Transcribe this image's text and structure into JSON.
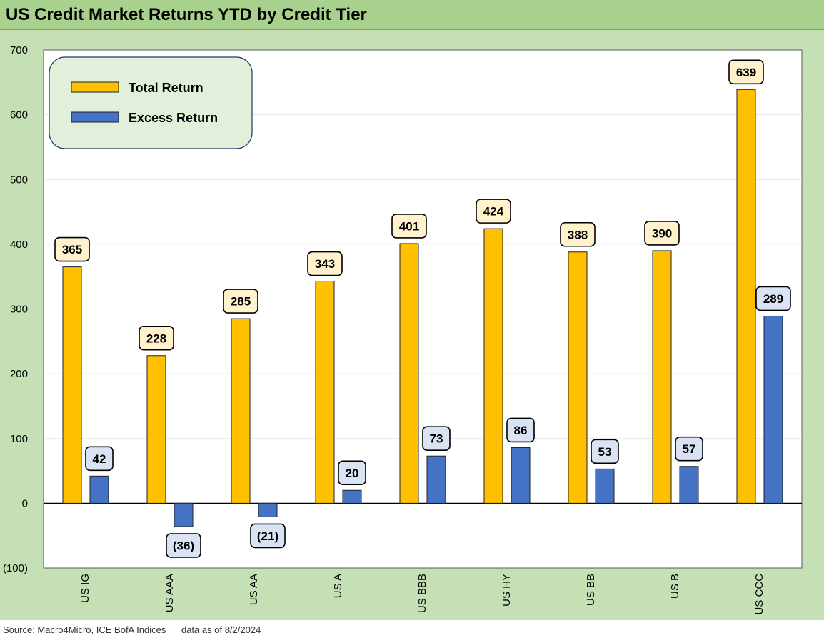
{
  "title": "US Credit Market Returns YTD by Credit Tier",
  "source": "Source: Macro4Micro, ICE BofA Indices      data as of 8/2/2024",
  "chart_data": {
    "type": "bar",
    "title": "US Credit Market Returns YTD by Credit Tier",
    "categories": [
      "US IG",
      "US AAA",
      "US AA",
      "US A",
      "US BBB",
      "US HY",
      "US BB",
      "US B",
      "US CCC"
    ],
    "series": [
      {
        "name": "Total Return",
        "values": [
          365,
          228,
          285,
          343,
          401,
          424,
          388,
          390,
          639
        ],
        "color": "#ffc000"
      },
      {
        "name": "Excess Return",
        "values": [
          42,
          -36,
          -21,
          20,
          73,
          86,
          53,
          57,
          289
        ],
        "color": "#4472c4"
      }
    ],
    "data_labels": [
      [
        "365",
        "228",
        "285",
        "343",
        "401",
        "424",
        "388",
        "390",
        "639"
      ],
      [
        "42",
        "(36)",
        "(21)",
        "20",
        "73",
        "86",
        "53",
        "57",
        "289"
      ]
    ],
    "label_fill": [
      "#fff2cc",
      "#dae3f3"
    ],
    "yticks": [
      700,
      600,
      500,
      400,
      300,
      200,
      100,
      0,
      -100
    ],
    "ytick_labels": [
      "700",
      "600",
      "500",
      "400",
      "300",
      "200",
      "100",
      "0",
      "(100)"
    ],
    "ylim": [
      -100,
      700
    ],
    "grid": true,
    "legend_position": "top-left",
    "legend_fill": "#e2efda"
  }
}
